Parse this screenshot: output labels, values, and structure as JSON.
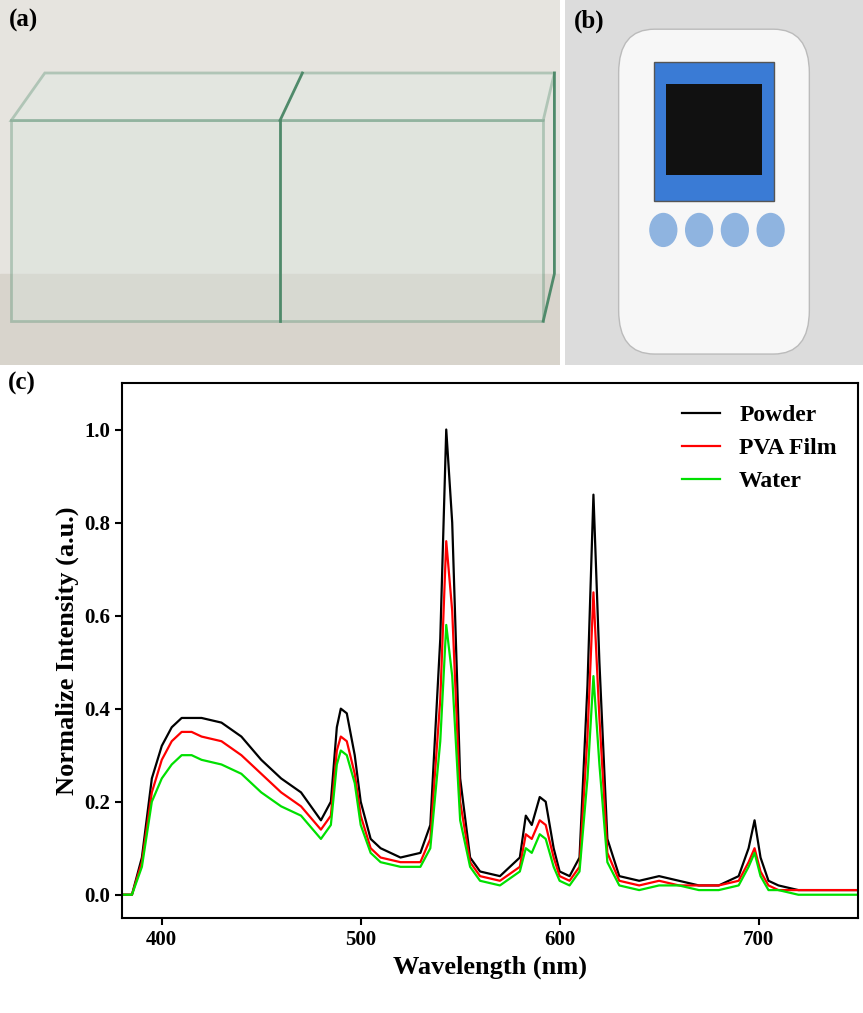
{
  "panels": [
    {
      "label": "(a)"
    },
    {
      "label": "(b)"
    }
  ],
  "chart_data": {
    "type": "line",
    "title": "(c)",
    "x_label": "Wavelength (nm)",
    "y_label": "Normalize Intensity (a.u.)",
    "x": [
      380,
      385,
      390,
      395,
      400,
      405,
      410,
      415,
      420,
      430,
      440,
      450,
      460,
      470,
      480,
      485,
      488,
      490,
      493,
      497,
      500,
      505,
      510,
      520,
      530,
      535,
      540,
      543,
      546,
      550,
      555,
      560,
      570,
      580,
      583,
      586,
      590,
      593,
      597,
      600,
      605,
      610,
      614,
      617,
      620,
      624,
      630,
      640,
      650,
      660,
      670,
      680,
      690,
      695,
      698,
      701,
      705,
      710,
      720,
      730,
      740,
      750
    ],
    "series": [
      {
        "name": "Powder",
        "color": "#000000",
        "values": [
          0,
          0,
          0.08,
          0.25,
          0.32,
          0.36,
          0.38,
          0.38,
          0.38,
          0.37,
          0.34,
          0.29,
          0.25,
          0.22,
          0.16,
          0.2,
          0.36,
          0.4,
          0.39,
          0.3,
          0.2,
          0.12,
          0.1,
          0.08,
          0.09,
          0.15,
          0.55,
          1.0,
          0.8,
          0.25,
          0.08,
          0.05,
          0.04,
          0.08,
          0.17,
          0.15,
          0.21,
          0.2,
          0.1,
          0.05,
          0.04,
          0.08,
          0.45,
          0.86,
          0.5,
          0.12,
          0.04,
          0.03,
          0.04,
          0.03,
          0.02,
          0.02,
          0.04,
          0.1,
          0.16,
          0.08,
          0.03,
          0.02,
          0.01,
          0.01,
          0.01,
          0.01
        ]
      },
      {
        "name": "PVA Film",
        "color": "#ff0000",
        "values": [
          0,
          0,
          0.07,
          0.22,
          0.29,
          0.33,
          0.35,
          0.35,
          0.34,
          0.33,
          0.3,
          0.26,
          0.22,
          0.19,
          0.14,
          0.17,
          0.31,
          0.34,
          0.33,
          0.26,
          0.17,
          0.1,
          0.08,
          0.07,
          0.07,
          0.12,
          0.42,
          0.76,
          0.61,
          0.2,
          0.07,
          0.04,
          0.03,
          0.06,
          0.13,
          0.12,
          0.16,
          0.15,
          0.08,
          0.04,
          0.03,
          0.06,
          0.34,
          0.65,
          0.38,
          0.09,
          0.03,
          0.02,
          0.03,
          0.02,
          0.02,
          0.02,
          0.03,
          0.07,
          0.1,
          0.05,
          0.02,
          0.01,
          0.01,
          0.01,
          0.01,
          0.01
        ]
      },
      {
        "name": "Water",
        "color": "#00e000",
        "values": [
          0,
          0,
          0.06,
          0.2,
          0.25,
          0.28,
          0.3,
          0.3,
          0.29,
          0.28,
          0.26,
          0.22,
          0.19,
          0.17,
          0.12,
          0.15,
          0.28,
          0.31,
          0.3,
          0.24,
          0.15,
          0.09,
          0.07,
          0.06,
          0.06,
          0.1,
          0.33,
          0.58,
          0.47,
          0.16,
          0.06,
          0.03,
          0.02,
          0.05,
          0.1,
          0.09,
          0.13,
          0.12,
          0.06,
          0.03,
          0.02,
          0.05,
          0.25,
          0.47,
          0.28,
          0.07,
          0.02,
          0.01,
          0.02,
          0.02,
          0.01,
          0.01,
          0.02,
          0.06,
          0.09,
          0.04,
          0.01,
          0.01,
          0.0,
          0.0,
          0.0,
          0.0
        ]
      }
    ],
    "xlim": [
      380,
      750
    ],
    "xticks": [
      400,
      500,
      600,
      700
    ],
    "ylim": [
      -0.05,
      1.1
    ],
    "yticks": [
      {
        "value": 0.0,
        "label": "0.0"
      },
      {
        "value": 0.2,
        "label": "0.2"
      },
      {
        "value": 0.4,
        "label": "0.4"
      },
      {
        "value": 0.6,
        "label": "0.6"
      },
      {
        "value": 0.8,
        "label": "0.8"
      },
      {
        "value": 1.0,
        "label": "1.0"
      }
    ],
    "legend": "upper right",
    "grid": false
  }
}
